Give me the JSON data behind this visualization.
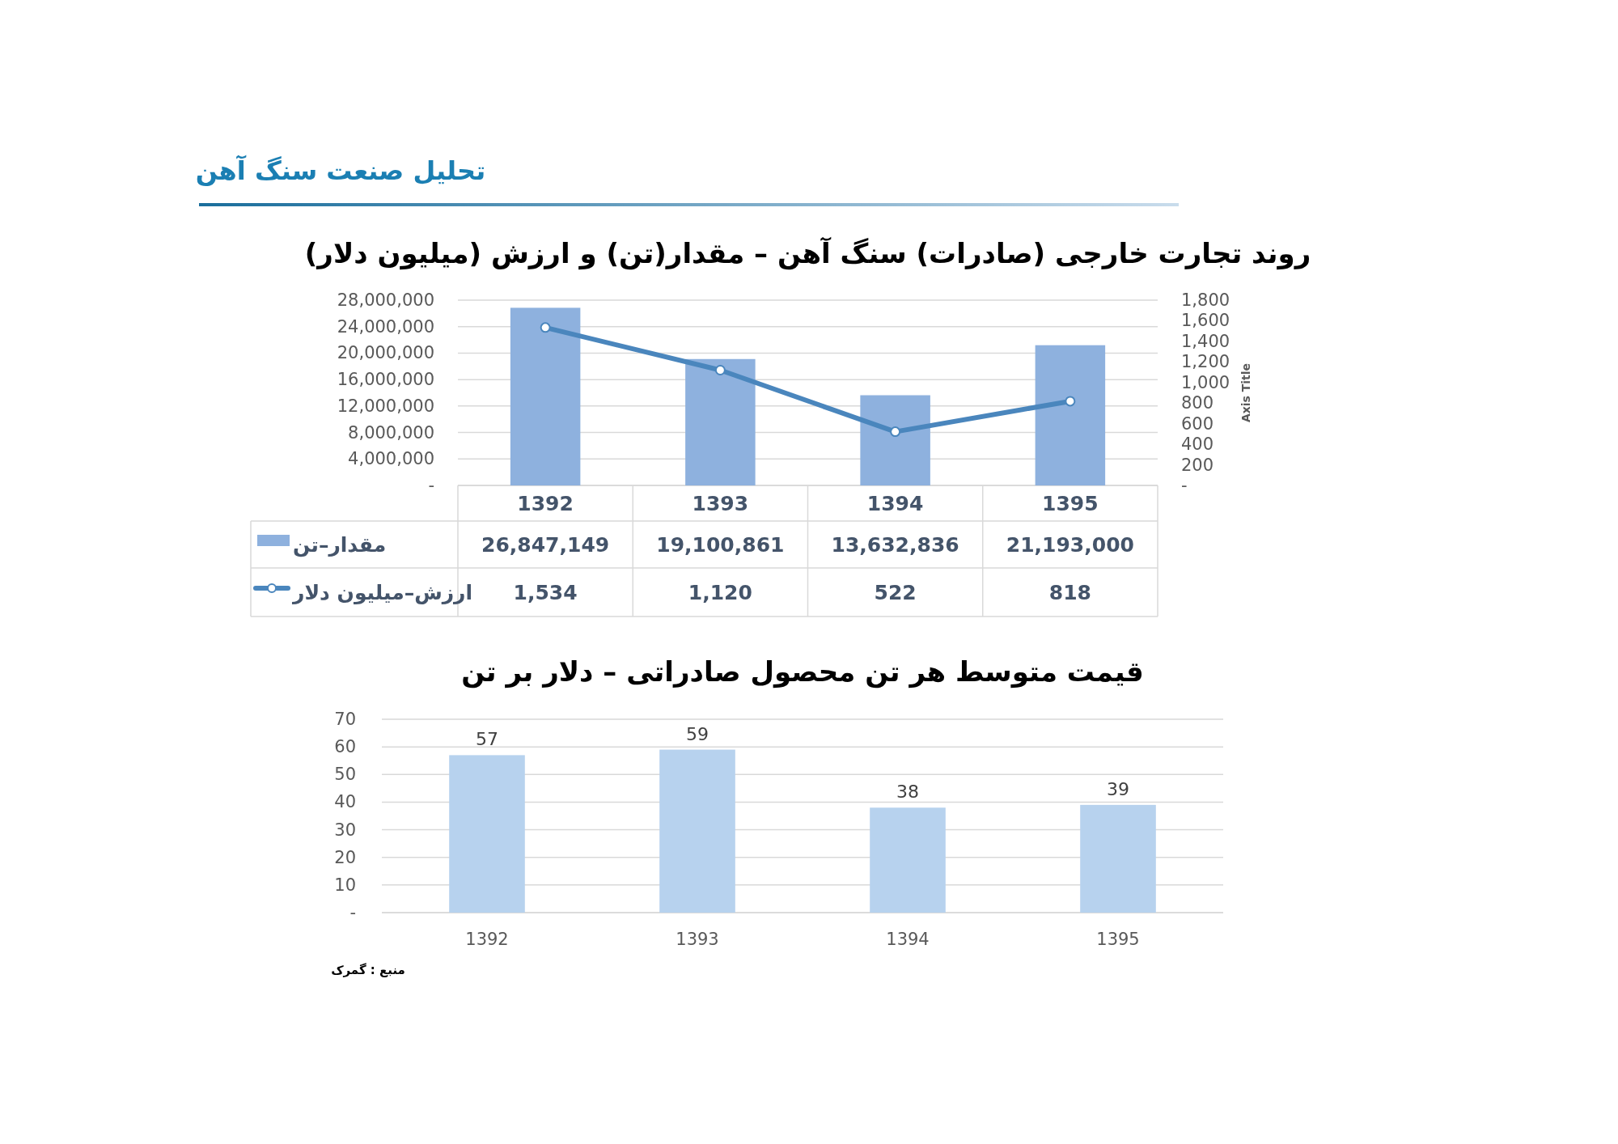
{
  "chart_data": [
    {
      "type": "bar",
      "title": "روند تجارت خارجی (صادرات) سنگ آهن – مقدار(تن) و ارزش (میلیون دلار)",
      "annotations": [
        "تحلیل صنعت سنگ آهن"
      ],
      "categories": [
        "1392",
        "1393",
        "1394",
        "1395"
      ],
      "series": [
        {
          "name": "مقدار–تن",
          "color": "#8eb1de",
          "values": [
            26847149,
            19100861,
            13632836,
            21193000
          ],
          "value_labels": [
            "26,847,149",
            "19,100,861",
            "13,632,836",
            "21,193,000"
          ]
        },
        {
          "name": "ارزش–میلیون دلار",
          "type": "line",
          "axis": "y2",
          "color": "#4a86bd",
          "values": [
            1534,
            1120,
            522,
            818
          ],
          "value_labels": [
            "1,534",
            "1,120",
            "522",
            "818"
          ]
        }
      ],
      "ylim": [
        0,
        28000000
      ],
      "yticks": [
        {
          "value": 0,
          "label": "-"
        },
        {
          "value": 4000000,
          "label": "4,000,000"
        },
        {
          "value": 8000000,
          "label": "8,000,000"
        },
        {
          "value": 12000000,
          "label": "12,000,000"
        },
        {
          "value": 16000000,
          "label": "16,000,000"
        },
        {
          "value": 20000000,
          "label": "20,000,000"
        },
        {
          "value": 24000000,
          "label": "24,000,000"
        },
        {
          "value": 28000000,
          "label": "28,000,000"
        }
      ],
      "y2lim": [
        0,
        1800
      ],
      "y2ticks": [
        {
          "value": 0,
          "label": "-"
        },
        200,
        400,
        600,
        800,
        {
          "value": 1000,
          "label": "1,000"
        },
        {
          "value": 1200,
          "label": "1,200"
        },
        {
          "value": 1400,
          "label": "1,400"
        },
        {
          "value": 1600,
          "label": "1,600"
        },
        {
          "value": 1800,
          "label": "1,800"
        }
      ],
      "y2label": "Axis Title",
      "grid": "y",
      "legend": "left",
      "marker": "circle"
    },
    {
      "type": "bar",
      "title": "قیمت متوسط هر تن محصول صادراتی – دلار  بر تن",
      "annotations": [
        "منبع : گمرک"
      ],
      "categories": [
        "1392",
        "1393",
        "1394",
        "1395"
      ],
      "color": "#b7d2ee",
      "values": [
        57,
        59,
        38,
        39
      ],
      "ylim": [
        0,
        70
      ],
      "yticks": [
        {
          "value": 0,
          "label": "-"
        },
        10,
        20,
        30,
        40,
        50,
        60,
        70
      ],
      "grid": "y",
      "data_labels": true
    }
  ]
}
